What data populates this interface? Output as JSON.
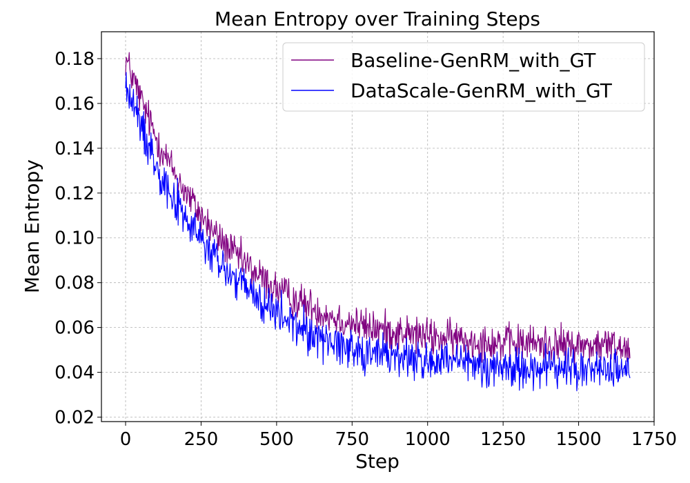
{
  "chart_data": {
    "type": "line",
    "title": "Mean Entropy over Training Steps",
    "xlabel": "Step",
    "ylabel": "Mean Entropy",
    "xlim": [
      -80,
      1750
    ],
    "ylim": [
      0.018,
      0.192
    ],
    "xticks": [
      0,
      250,
      500,
      750,
      1000,
      1250,
      1500,
      1750
    ],
    "xtick_labels": [
      "0",
      "250",
      "500",
      "750",
      "1000",
      "1250",
      "1500",
      "1750"
    ],
    "yticks": [
      0.02,
      0.04,
      0.06,
      0.08,
      0.1,
      0.12,
      0.14,
      0.16,
      0.18
    ],
    "ytick_labels": [
      "0.02",
      "0.04",
      "0.06",
      "0.08",
      "0.10",
      "0.12",
      "0.14",
      "0.16",
      "0.18"
    ],
    "grid": true,
    "legend_position": "top-right",
    "series": [
      {
        "name": "Baseline-GenRM_with_GT",
        "color": "#800080",
        "x": [
          0,
          50,
          100,
          150,
          200,
          250,
          300,
          350,
          400,
          450,
          500,
          550,
          600,
          650,
          700,
          750,
          800,
          850,
          900,
          950,
          1000,
          1050,
          1100,
          1150,
          1200,
          1250,
          1300,
          1350,
          1400,
          1450,
          1500,
          1550,
          1600,
          1670
        ],
        "y": [
          0.18,
          0.162,
          0.145,
          0.132,
          0.12,
          0.11,
          0.101,
          0.094,
          0.088,
          0.082,
          0.077,
          0.073,
          0.07,
          0.067,
          0.064,
          0.062,
          0.06,
          0.059,
          0.058,
          0.057,
          0.056,
          0.055,
          0.055,
          0.054,
          0.054,
          0.053,
          0.053,
          0.053,
          0.053,
          0.052,
          0.052,
          0.052,
          0.052,
          0.051
        ]
      },
      {
        "name": "DataScale-GenRM_with_GT",
        "color": "#0000ff",
        "x": [
          0,
          50,
          100,
          150,
          200,
          250,
          300,
          350,
          400,
          450,
          500,
          550,
          600,
          650,
          700,
          750,
          800,
          850,
          900,
          950,
          1000,
          1050,
          1100,
          1150,
          1200,
          1250,
          1300,
          1350,
          1400,
          1450,
          1500,
          1550,
          1600,
          1670
        ],
        "y": [
          0.168,
          0.15,
          0.134,
          0.12,
          0.108,
          0.099,
          0.09,
          0.083,
          0.077,
          0.071,
          0.066,
          0.062,
          0.058,
          0.055,
          0.053,
          0.051,
          0.049,
          0.048,
          0.047,
          0.046,
          0.045,
          0.044,
          0.044,
          0.043,
          0.043,
          0.042,
          0.042,
          0.042,
          0.042,
          0.042,
          0.041,
          0.041,
          0.041,
          0.041
        ]
      }
    ]
  }
}
